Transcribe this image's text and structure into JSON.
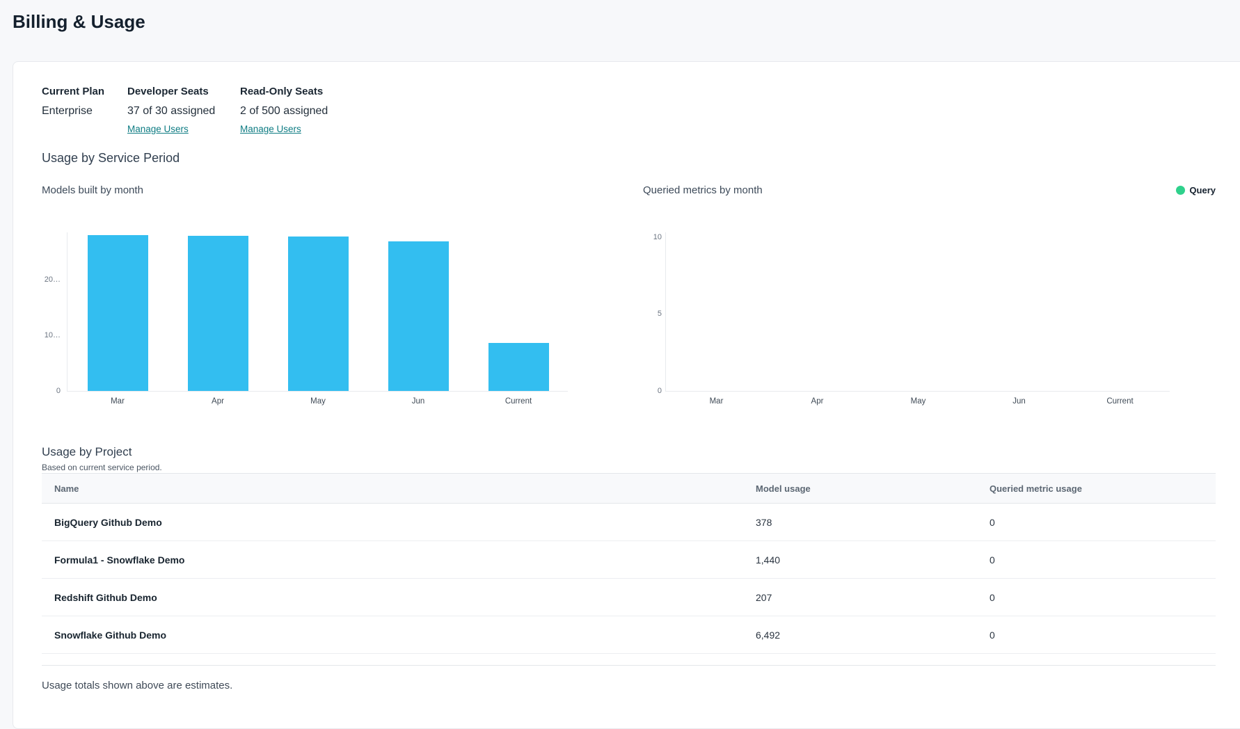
{
  "page": {
    "title": "Billing & Usage"
  },
  "plan": {
    "current_plan_label": "Current Plan",
    "current_plan_value": "Enterprise",
    "developer_seats_label": "Developer Seats",
    "developer_seats_value": "37 of 30 assigned",
    "developer_manage_label": "Manage Users",
    "readonly_seats_label": "Read-Only Seats",
    "readonly_seats_value": "2 of 500 assigned",
    "readonly_manage_label": "Manage Users"
  },
  "usage_section": {
    "title": "Usage by Service Period"
  },
  "chart_data": [
    {
      "type": "bar",
      "title": "Models built by month",
      "categories": [
        "Mar",
        "Apr",
        "May",
        "Jun",
        "Current"
      ],
      "values": [
        28000,
        27900,
        27800,
        26900,
        8600
      ],
      "yticks": [
        {
          "value": 0,
          "label": "0"
        },
        {
          "value": 10000,
          "label": "10…"
        },
        {
          "value": 20000,
          "label": "20…"
        }
      ],
      "ylim": [
        0,
        28500
      ],
      "xlabel": "",
      "ylabel": "",
      "grid": false,
      "bar_color": "#33bef0",
      "legend": null
    },
    {
      "type": "bar",
      "title": "Queried metrics by month",
      "categories": [
        "Mar",
        "Apr",
        "May",
        "Jun",
        "Current"
      ],
      "values": [
        0,
        0,
        0,
        0,
        0
      ],
      "yticks": [
        {
          "value": 0,
          "label": "0"
        },
        {
          "value": 5,
          "label": "5"
        },
        {
          "value": 10,
          "label": "10"
        }
      ],
      "ylim": [
        0,
        10.3
      ],
      "xlabel": "",
      "ylabel": "",
      "grid": false,
      "bar_color": "#2fd18c",
      "legend": {
        "label": "Query",
        "color": "#2fd18c",
        "position": "top-right"
      }
    }
  ],
  "project_usage": {
    "title": "Usage by Project",
    "subtitle": "Based on current service period.",
    "columns": [
      "Name",
      "Model usage",
      "Queried metric usage"
    ],
    "rows": [
      {
        "name": "BigQuery Github Demo",
        "model_usage": "378",
        "queried_metric_usage": "0"
      },
      {
        "name": "Formula1 - Snowflake Demo",
        "model_usage": "1,440",
        "queried_metric_usage": "0"
      },
      {
        "name": "Redshift Github Demo",
        "model_usage": "207",
        "queried_metric_usage": "0"
      },
      {
        "name": "Snowflake Github Demo",
        "model_usage": "6,492",
        "queried_metric_usage": "0"
      }
    ],
    "footer_note": "Usage totals shown above are estimates."
  },
  "colors": {
    "bar_blue": "#33bef0",
    "legend_green": "#2fd18c",
    "link_teal": "#0e7c83",
    "page_background": "#f7f8fa"
  }
}
